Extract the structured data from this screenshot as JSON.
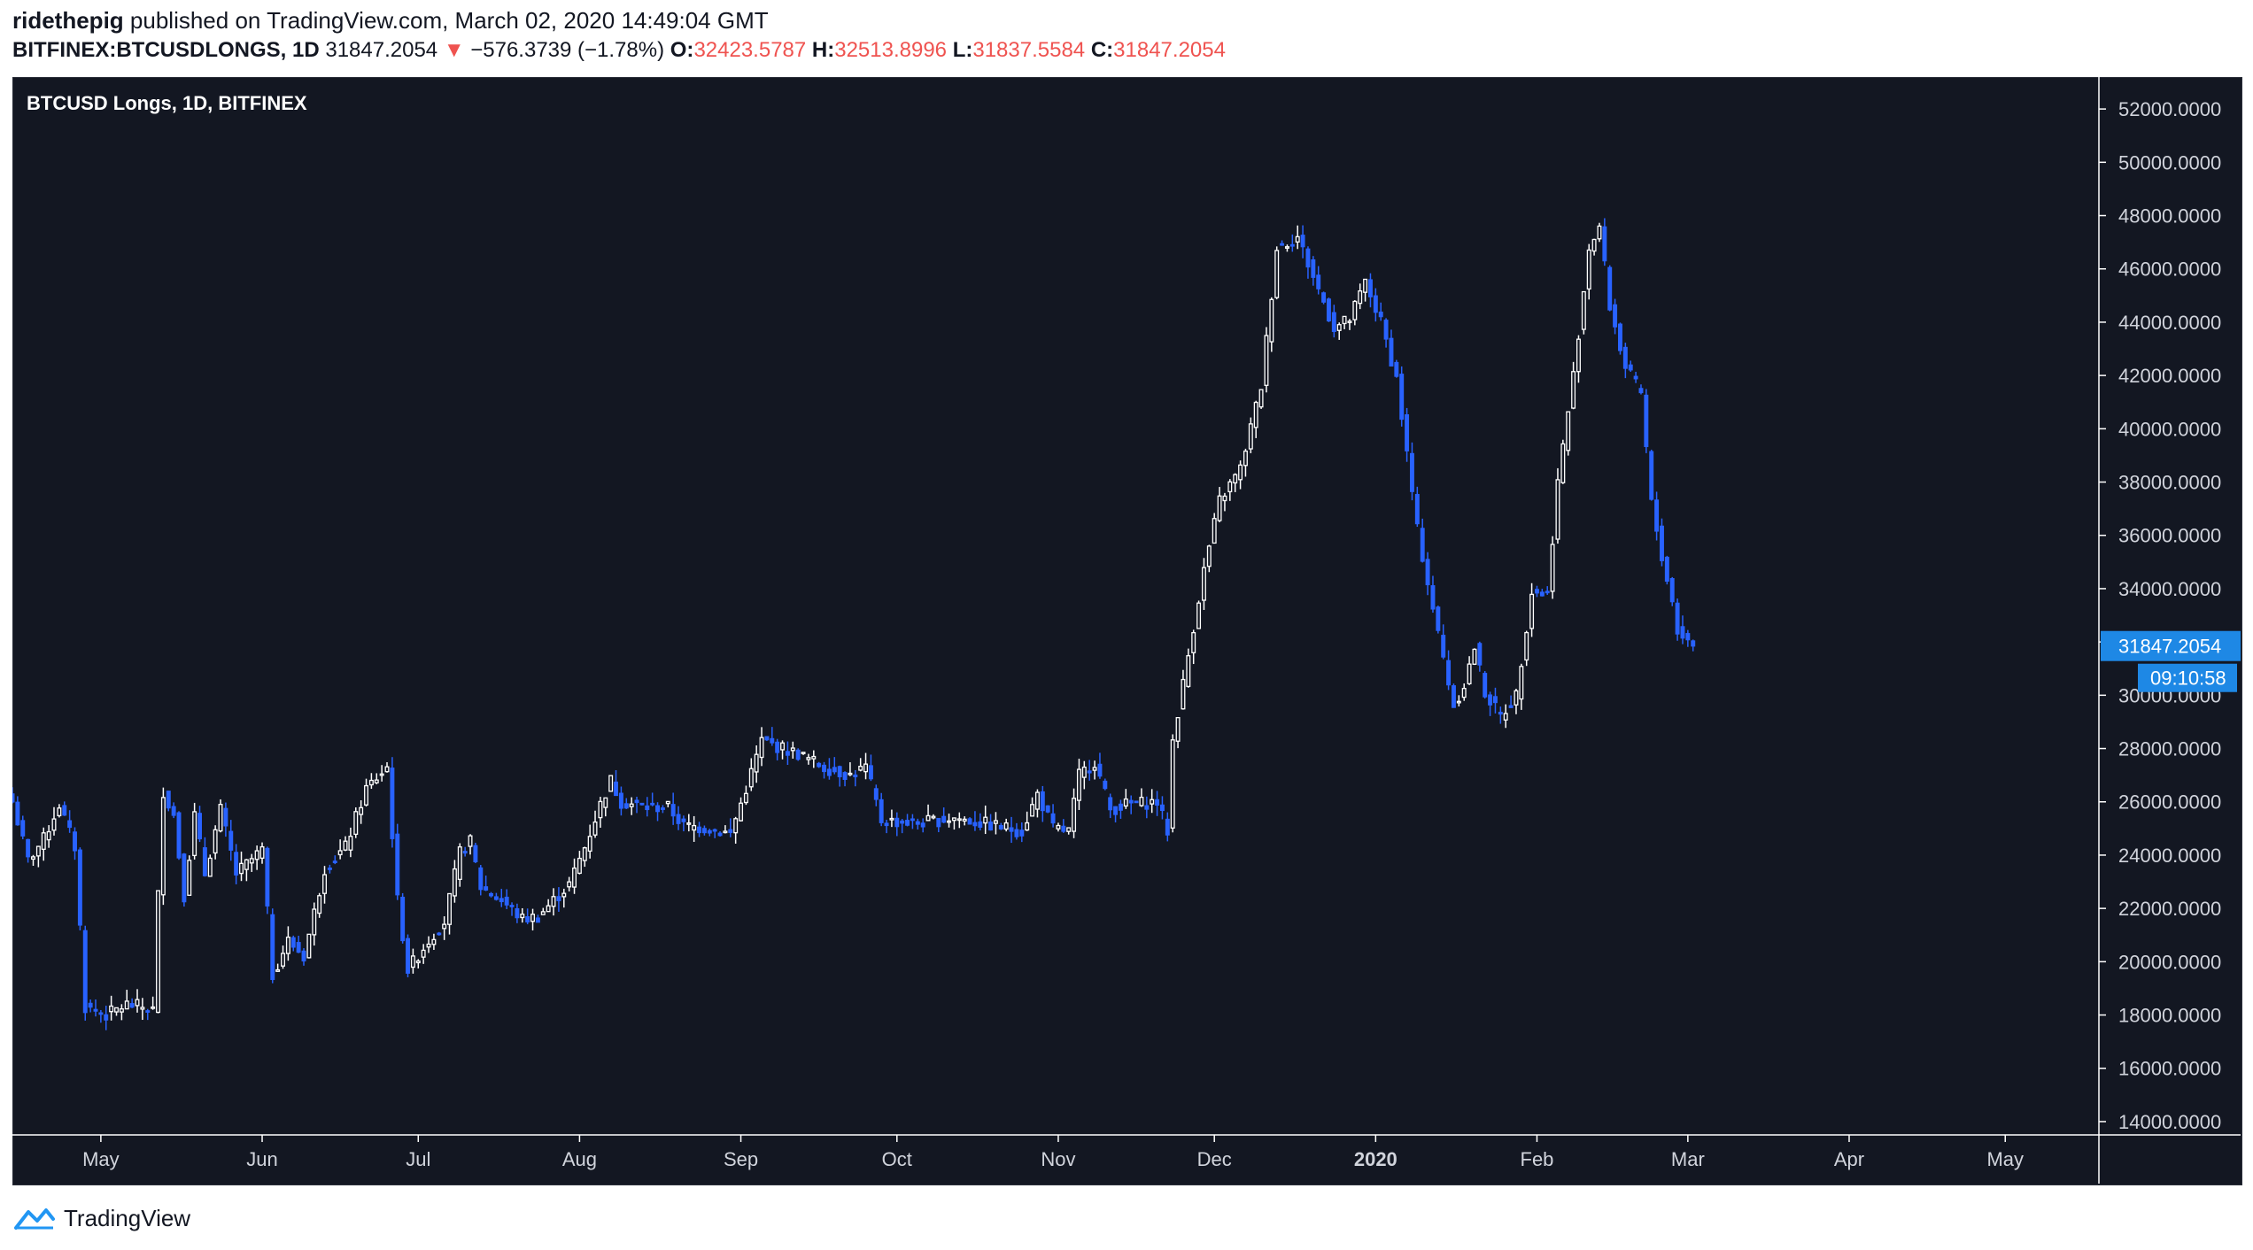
{
  "header": {
    "author": "ridethepig",
    "published_text": "published on TradingView.com, March 02, 2020 14:49:04 GMT",
    "symbol": "BITFINEX:BTCUSDLONGS, 1D",
    "last_price": "31847.2054",
    "change": "−576.3739 (−1.78%)",
    "o_label": "O:",
    "o_value": "32423.5787",
    "h_label": "H:",
    "h_value": "32513.8996",
    "l_label": "L:",
    "l_value": "31837.5584",
    "c_label": "C:",
    "c_value": "31847.2054"
  },
  "footer": {
    "brand": "TradingView"
  },
  "colors": {
    "background": "#131722",
    "up_candle": "#ffffff",
    "down_candle": "#2962ff",
    "price_label_bg": "#1e88e5",
    "change_red": "#ef5350"
  },
  "chart_data": {
    "type": "candlestick",
    "title": "BTCUSD Longs, 1D, BITFINEX",
    "price_label": "31847.2054",
    "countdown_label": "09:10:58",
    "current_price": 31847.2054,
    "ylim": [
      13500,
      53200
    ],
    "y_ticks": [
      14000,
      16000,
      18000,
      20000,
      22000,
      24000,
      26000,
      28000,
      30000,
      32000,
      34000,
      36000,
      38000,
      40000,
      42000,
      44000,
      46000,
      48000,
      50000,
      52000
    ],
    "y_tick_labels": [
      "14000.0000",
      "16000.0000",
      "18000.0000",
      "20000.0000",
      "22000.0000",
      "24000.0000",
      "26000.0000",
      "28000.0000",
      "30000.0000",
      "32000.0000",
      "34000.0000",
      "36000.0000",
      "38000.0000",
      "40000.0000",
      "42000.0000",
      "44000.0000",
      "46000.0000",
      "48000.0000",
      "50000.0000",
      "52000.0000"
    ],
    "x_range": [
      "2019-04-14",
      "2020-05-19"
    ],
    "x_ticks": [
      {
        "date": "2019-05-01",
        "label": "May",
        "bold": false
      },
      {
        "date": "2019-06-01",
        "label": "Jun",
        "bold": false
      },
      {
        "date": "2019-07-01",
        "label": "Jul",
        "bold": false
      },
      {
        "date": "2019-08-01",
        "label": "Aug",
        "bold": false
      },
      {
        "date": "2019-09-01",
        "label": "Sep",
        "bold": false
      },
      {
        "date": "2019-10-01",
        "label": "Oct",
        "bold": false
      },
      {
        "date": "2019-11-01",
        "label": "Nov",
        "bold": false
      },
      {
        "date": "2019-12-01",
        "label": "Dec",
        "bold": false
      },
      {
        "date": "2020-01-01",
        "label": "2020",
        "bold": true
      },
      {
        "date": "2020-02-01",
        "label": "Feb",
        "bold": false
      },
      {
        "date": "2020-03-01",
        "label": "Mar",
        "bold": false
      },
      {
        "date": "2020-04-01",
        "label": "Apr",
        "bold": false
      },
      {
        "date": "2020-05-01",
        "label": "May",
        "bold": false
      }
    ],
    "close_path": [
      [
        "2019-04-14",
        26000
      ],
      [
        "2019-04-17",
        23800
      ],
      [
        "2019-04-20",
        24600
      ],
      [
        "2019-04-23",
        25900
      ],
      [
        "2019-04-26",
        24300
      ],
      [
        "2019-04-28",
        18300
      ],
      [
        "2019-05-02",
        18000
      ],
      [
        "2019-05-06",
        18400
      ],
      [
        "2019-05-09",
        18300
      ],
      [
        "2019-05-11",
        18200
      ],
      [
        "2019-05-12",
        22500
      ],
      [
        "2019-05-13",
        26400
      ],
      [
        "2019-05-15",
        25500
      ],
      [
        "2019-05-17",
        22500
      ],
      [
        "2019-05-19",
        25500
      ],
      [
        "2019-05-21",
        23300
      ],
      [
        "2019-05-24",
        25700
      ],
      [
        "2019-05-27",
        23300
      ],
      [
        "2019-06-01",
        24200
      ],
      [
        "2019-06-03",
        19500
      ],
      [
        "2019-06-06",
        20800
      ],
      [
        "2019-06-09",
        20200
      ],
      [
        "2019-06-13",
        23500
      ],
      [
        "2019-06-17",
        24300
      ],
      [
        "2019-06-21",
        26500
      ],
      [
        "2019-06-25",
        27300
      ],
      [
        "2019-06-27",
        22300
      ],
      [
        "2019-06-29",
        19700
      ],
      [
        "2019-07-03",
        20800
      ],
      [
        "2019-07-06",
        21500
      ],
      [
        "2019-07-09",
        24100
      ],
      [
        "2019-07-11",
        24500
      ],
      [
        "2019-07-13",
        22800
      ],
      [
        "2019-07-17",
        22300
      ],
      [
        "2019-07-21",
        21600
      ],
      [
        "2019-07-24",
        21700
      ],
      [
        "2019-07-27",
        22300
      ],
      [
        "2019-07-30",
        22900
      ],
      [
        "2019-08-02",
        24300
      ],
      [
        "2019-08-05",
        25900
      ],
      [
        "2019-08-07",
        26800
      ],
      [
        "2019-08-09",
        26000
      ],
      [
        "2019-08-14",
        25800
      ],
      [
        "2019-08-18",
        25800
      ],
      [
        "2019-08-21",
        25100
      ],
      [
        "2019-08-26",
        25000
      ],
      [
        "2019-08-30",
        24800
      ],
      [
        "2019-09-02",
        26500
      ],
      [
        "2019-09-05",
        28300
      ],
      [
        "2019-09-09",
        28000
      ],
      [
        "2019-09-12",
        27800
      ],
      [
        "2019-09-17",
        27300
      ],
      [
        "2019-09-22",
        27000
      ],
      [
        "2019-09-25",
        27300
      ],
      [
        "2019-09-28",
        25300
      ],
      [
        "2019-10-05",
        25200
      ],
      [
        "2019-10-12",
        25400
      ],
      [
        "2019-10-20",
        25100
      ],
      [
        "2019-10-25",
        24900
      ],
      [
        "2019-10-28",
        26300
      ],
      [
        "2019-10-31",
        25000
      ],
      [
        "2019-11-03",
        24900
      ],
      [
        "2019-11-05",
        27000
      ],
      [
        "2019-11-08",
        27500
      ],
      [
        "2019-11-11",
        25700
      ],
      [
        "2019-11-14",
        25900
      ],
      [
        "2019-11-20",
        26000
      ],
      [
        "2019-11-22",
        24900
      ],
      [
        "2019-11-23",
        28300
      ],
      [
        "2019-11-26",
        31500
      ],
      [
        "2019-11-29",
        34700
      ],
      [
        "2019-12-02",
        37300
      ],
      [
        "2019-12-06",
        38500
      ],
      [
        "2019-12-10",
        41600
      ],
      [
        "2019-12-13",
        46800
      ],
      [
        "2019-12-17",
        47200
      ],
      [
        "2019-12-20",
        45700
      ],
      [
        "2019-12-24",
        43800
      ],
      [
        "2019-12-27",
        44100
      ],
      [
        "2019-12-30",
        45500
      ],
      [
        "2020-01-02",
        44000
      ],
      [
        "2020-01-05",
        41900
      ],
      [
        "2020-01-09",
        36200
      ],
      [
        "2020-01-13",
        32300
      ],
      [
        "2020-01-16",
        29600
      ],
      [
        "2020-01-18",
        30400
      ],
      [
        "2020-01-20",
        31800
      ],
      [
        "2020-01-22",
        30100
      ],
      [
        "2020-01-25",
        29200
      ],
      [
        "2020-01-28",
        30000
      ],
      [
        "2020-01-31",
        33900
      ],
      [
        "2020-02-03",
        33800
      ],
      [
        "2020-02-05",
        38000
      ],
      [
        "2020-02-08",
        42000
      ],
      [
        "2020-02-11",
        46800
      ],
      [
        "2020-02-13",
        47600
      ],
      [
        "2020-02-15",
        44600
      ],
      [
        "2020-02-18",
        42300
      ],
      [
        "2020-02-21",
        41300
      ],
      [
        "2020-02-23",
        37200
      ],
      [
        "2020-02-25",
        35200
      ],
      [
        "2020-02-27",
        33500
      ],
      [
        "2020-02-28",
        32423.5787
      ],
      [
        "2020-03-02",
        31847.2054
      ]
    ]
  }
}
